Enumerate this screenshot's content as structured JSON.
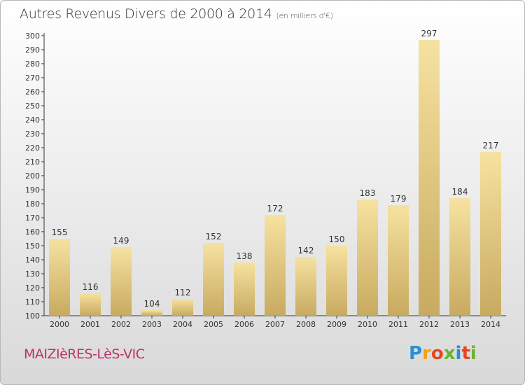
{
  "header": {
    "title": "Autres Revenus Divers de 2000 à 2014",
    "unit": "(en milliers d'€)"
  },
  "footer": {
    "town": "MAIZIèRES-LèS-VIC",
    "logo_letters": [
      "P",
      "r",
      "o",
      "x",
      "i",
      "t",
      "i"
    ],
    "logo_colors": [
      "#2a8fd6",
      "#f2a01c",
      "#e8451f",
      "#6ab42d",
      "#2a8fd6",
      "#e8451f",
      "#6ab42d"
    ]
  },
  "colors": {
    "bar_light": "#f6e2a0",
    "bar_dark": "#c8aa60",
    "axis": "#333333",
    "grid": "#d8d8d8"
  },
  "chart_data": {
    "type": "bar",
    "categories": [
      "2000",
      "2001",
      "2002",
      "2003",
      "2004",
      "2005",
      "2006",
      "2007",
      "2008",
      "2009",
      "2010",
      "2011",
      "2012",
      "2013",
      "2014"
    ],
    "values": [
      155,
      116,
      149,
      104,
      112,
      152,
      138,
      172,
      142,
      150,
      183,
      179,
      297,
      184,
      217
    ],
    "title": "Autres Revenus Divers de 2000 à 2014",
    "subtitle": "(en milliers d'€)",
    "xlabel": "",
    "ylabel": "",
    "ylim": [
      100,
      300
    ],
    "ytick_step": 10,
    "grid": false,
    "legend": "none"
  }
}
